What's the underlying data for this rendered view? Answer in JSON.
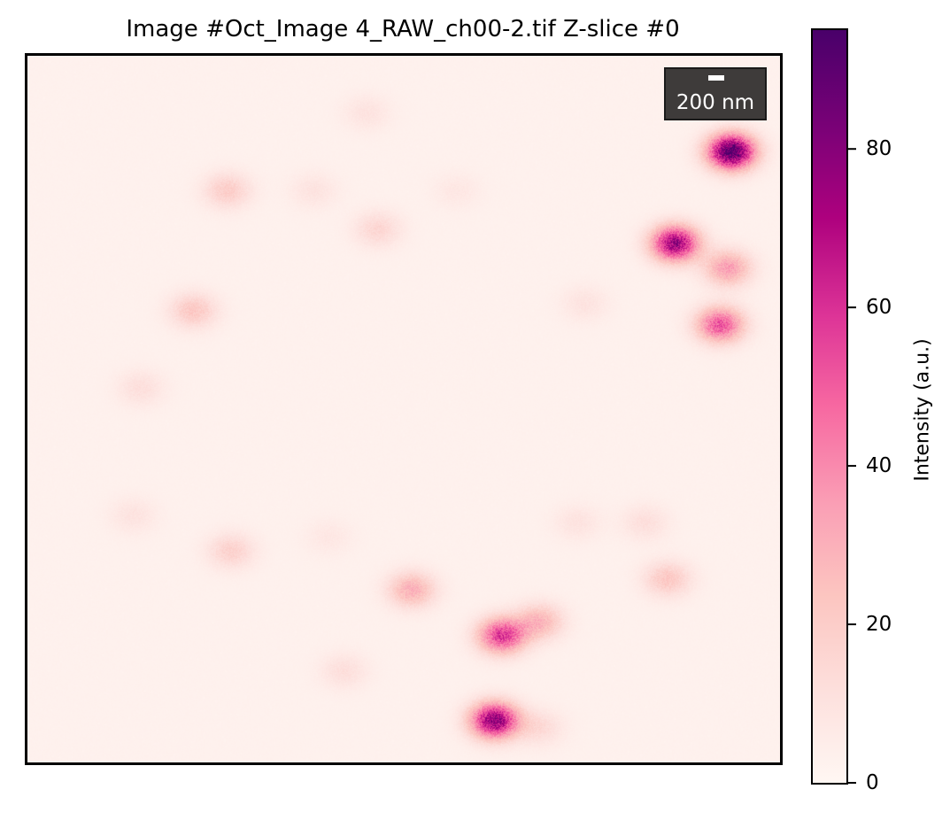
{
  "chart_data": {
    "type": "heatmap",
    "title": "Image #Oct_Image 4_RAW_ch00-2.tif Z-slice #0",
    "colormap": "RdPu",
    "scale_bar": {
      "label": "200 nm"
    },
    "colorbar": {
      "label": "Intensity (a.u.)",
      "range": [
        0,
        95
      ],
      "ticks": [
        0,
        20,
        40,
        60,
        80
      ],
      "tick_labels": [
        "0",
        "20",
        "40",
        "60",
        "80"
      ]
    },
    "background_intensity": 3,
    "spots": [
      {
        "x": 0.935,
        "y": 0.135,
        "intensity": 92
      },
      {
        "x": 0.86,
        "y": 0.265,
        "intensity": 75
      },
      {
        "x": 0.93,
        "y": 0.3,
        "intensity": 35
      },
      {
        "x": 0.92,
        "y": 0.38,
        "intensity": 52
      },
      {
        "x": 0.62,
        "y": 0.94,
        "intensity": 78
      },
      {
        "x": 0.63,
        "y": 0.82,
        "intensity": 58
      },
      {
        "x": 0.68,
        "y": 0.8,
        "intensity": 28
      },
      {
        "x": 0.51,
        "y": 0.755,
        "intensity": 30
      },
      {
        "x": 0.22,
        "y": 0.36,
        "intensity": 22
      },
      {
        "x": 0.265,
        "y": 0.19,
        "intensity": 20
      },
      {
        "x": 0.465,
        "y": 0.245,
        "intensity": 16
      },
      {
        "x": 0.45,
        "y": 0.08,
        "intensity": 10
      },
      {
        "x": 0.15,
        "y": 0.47,
        "intensity": 12
      },
      {
        "x": 0.27,
        "y": 0.7,
        "intensity": 18
      },
      {
        "x": 0.85,
        "y": 0.74,
        "intensity": 22
      },
      {
        "x": 0.74,
        "y": 0.35,
        "intensity": 10
      },
      {
        "x": 0.4,
        "y": 0.68,
        "intensity": 8
      },
      {
        "x": 0.42,
        "y": 0.87,
        "intensity": 12
      },
      {
        "x": 0.68,
        "y": 0.95,
        "intensity": 14
      },
      {
        "x": 0.14,
        "y": 0.65,
        "intensity": 10
      },
      {
        "x": 0.73,
        "y": 0.66,
        "intensity": 10
      },
      {
        "x": 0.38,
        "y": 0.19,
        "intensity": 10
      },
      {
        "x": 0.57,
        "y": 0.19,
        "intensity": 8
      },
      {
        "x": 0.82,
        "y": 0.66,
        "intensity": 12
      }
    ]
  }
}
